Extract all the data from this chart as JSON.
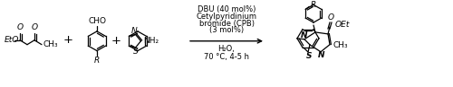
{
  "bg_color": "#ffffff",
  "text_color": "#000000",
  "fs": 6.5,
  "reagents": [
    "DBU (40 mol%)",
    "Cetylpyridinium",
    "bromide (CPB)",
    "(3 mol%)"
  ],
  "conditions": [
    "H₂O,",
    "70 °C, 4-5 h"
  ]
}
